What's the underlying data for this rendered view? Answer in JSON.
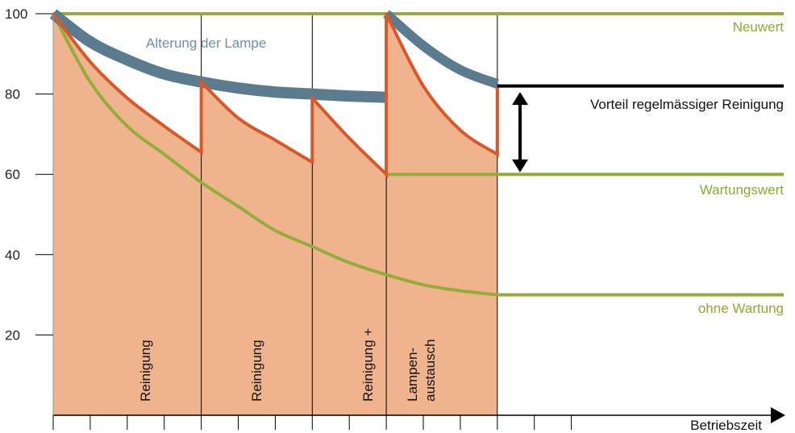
{
  "chart_data": {
    "type": "line",
    "xlabel": "Betriebszeit",
    "ylabel": "",
    "ylim": [
      0,
      100
    ],
    "y_ticks": [
      "20",
      "40",
      "60",
      "80",
      "100"
    ],
    "x_ticks_count": 14,
    "grid": "vertical lines at maintenance events",
    "colors": {
      "new_value": "#94ad3a",
      "maintenance_value": "#94ad3a",
      "no_maintenance": "#94ad3a",
      "lamp_aging": "#5a7c8e",
      "cleaning_curve": "#d9582b",
      "area_fill": "#efb48d",
      "axis": "#000000",
      "label_green": "#8aab2f",
      "label_blue": "#6d8fa3"
    },
    "series": [
      {
        "name": "Neuwert",
        "points": [
          [
            0,
            100
          ],
          [
            20,
            100
          ]
        ]
      },
      {
        "name": "Wartungswert",
        "points": [
          [
            9,
            60
          ],
          [
            20,
            60
          ]
        ]
      },
      {
        "name": "ohne Wartung",
        "points": [
          [
            0,
            100
          ],
          [
            1,
            83
          ],
          [
            2,
            72
          ],
          [
            3,
            65
          ],
          [
            4,
            58
          ],
          [
            5,
            52
          ],
          [
            6,
            46
          ],
          [
            7,
            42
          ],
          [
            8,
            38
          ],
          [
            9,
            35
          ],
          [
            10,
            32.5
          ],
          [
            11,
            31
          ],
          [
            12,
            30
          ],
          [
            20,
            30
          ]
        ]
      },
      {
        "name": "Alterung der Lampe",
        "points": [
          [
            0,
            100
          ],
          [
            1,
            93
          ],
          [
            2,
            88.5
          ],
          [
            3,
            85
          ],
          [
            4,
            83
          ],
          [
            5,
            81.5
          ],
          [
            6,
            80.5
          ],
          [
            7,
            80
          ],
          [
            8,
            79.5
          ],
          [
            9,
            79.2
          ]
        ],
        "points_2": [
          [
            9,
            100
          ],
          [
            10,
            92
          ],
          [
            11,
            86
          ],
          [
            12,
            82.5
          ]
        ]
      },
      {
        "name": "Reinigung",
        "points": [
          [
            0,
            100
          ],
          [
            1,
            88
          ],
          [
            2,
            79
          ],
          [
            3,
            72
          ],
          [
            4,
            65.5
          ],
          [
            4,
            83
          ],
          [
            5,
            74
          ],
          [
            6,
            68.5
          ],
          [
            7,
            63
          ],
          [
            7,
            79
          ],
          [
            8,
            69
          ],
          [
            9,
            60
          ],
          [
            9,
            100
          ],
          [
            10,
            82
          ],
          [
            11,
            71
          ],
          [
            12,
            65
          ],
          [
            12,
            82
          ]
        ]
      }
    ],
    "annotations": {
      "neuwert": "Neuwert",
      "alterung": "Alterung der Lampe",
      "vorteil": "Vorteil regelmässiger Reinigung",
      "wartungswert": "Wartungswert",
      "ohne_wartung": "ohne Wartung",
      "events": [
        "Reinigung",
        "Reinigung",
        "Reinigung +",
        "Lampen-",
        "austausch"
      ]
    }
  }
}
